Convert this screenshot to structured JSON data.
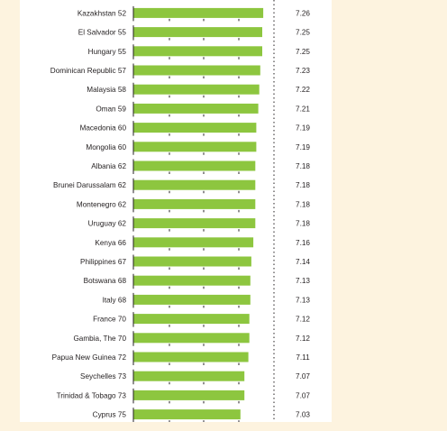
{
  "chart_data": {
    "type": "bar",
    "orientation": "horizontal",
    "title": "",
    "xlabel": "",
    "ylabel": "",
    "categories": [
      "Kazakhstan 52",
      "El Salvador 55",
      "Hungary 55",
      "Dominican Republic 57",
      "Malaysia 58",
      "Oman 59",
      "Macedonia 60",
      "Mongolia 60",
      "Albania 62",
      "Brunei Darussalam 62",
      "Montenegro 62",
      "Uruguay 62",
      "Kenya 66",
      "Philippines 67",
      "Botswana 68",
      "Italy 68",
      "France 70",
      "Gambia, The 70",
      "Papua New Guinea 72",
      "Seychelles 73",
      "Trinidad & Tobago 73",
      "Cyprus 75"
    ],
    "values": [
      7.26,
      7.25,
      7.25,
      7.23,
      7.22,
      7.21,
      7.19,
      7.19,
      7.18,
      7.18,
      7.18,
      7.18,
      7.16,
      7.14,
      7.13,
      7.13,
      7.12,
      7.12,
      7.11,
      7.07,
      7.07,
      7.03
    ],
    "value_labels": [
      "7.26",
      "7.25",
      "7.25",
      "7.23",
      "7.22",
      "7.21",
      "7.19",
      "7.19",
      "7.18",
      "7.18",
      "7.18",
      "7.18",
      "7.16",
      "7.14",
      "7.13",
      "7.13",
      "7.12",
      "7.12",
      "7.11",
      "7.07",
      "7.07",
      "7.03"
    ],
    "bar_color": "#8dc63f",
    "background_color": "#fdf3df",
    "grid": false,
    "legend": "none"
  }
}
